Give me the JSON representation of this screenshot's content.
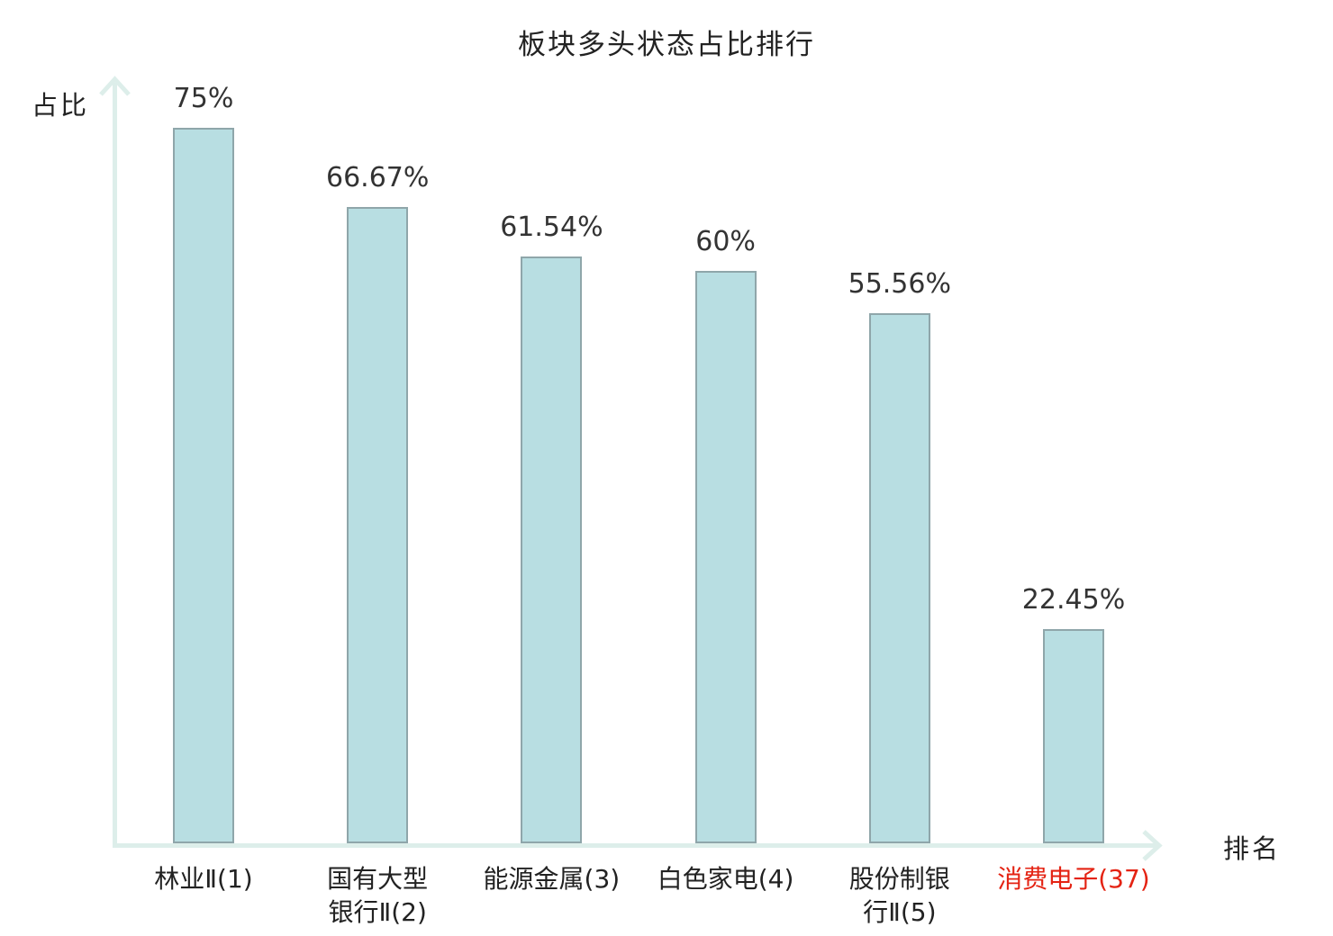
{
  "chart_data": {
    "type": "bar",
    "title": "板块多头状态占比排行",
    "xlabel": "排名",
    "ylabel": "占比",
    "categories": [
      "林业Ⅱ(1)",
      "国有大型银行Ⅱ(2)",
      "能源金属(3)",
      "白色家电(4)",
      "股份制银行Ⅱ(5)",
      "消费电子(37)"
    ],
    "category_display_lines": [
      [
        "林业Ⅱ(1)"
      ],
      [
        "国有大型",
        "银行Ⅱ(2)"
      ],
      [
        "能源金属(3)"
      ],
      [
        "白色家电(4)"
      ],
      [
        "股份制银",
        "行Ⅱ(5)"
      ],
      [
        "消费电子(37)"
      ]
    ],
    "values": [
      75,
      66.67,
      61.54,
      60,
      55.56,
      22.45
    ],
    "value_labels": [
      "75%",
      "66.67%",
      "61.54%",
      "60%",
      "55.56%",
      "22.45%"
    ],
    "highlighted_category_index": 5,
    "ylim": [
      0,
      80
    ],
    "grid": false,
    "legend": false,
    "colors": {
      "bar_fill": "#b8dee2",
      "bar_border": "#8fa6aa",
      "axis": "#ddeeea",
      "text": "#222222",
      "value_text": "#333333",
      "highlight_text": "#e42313"
    }
  }
}
